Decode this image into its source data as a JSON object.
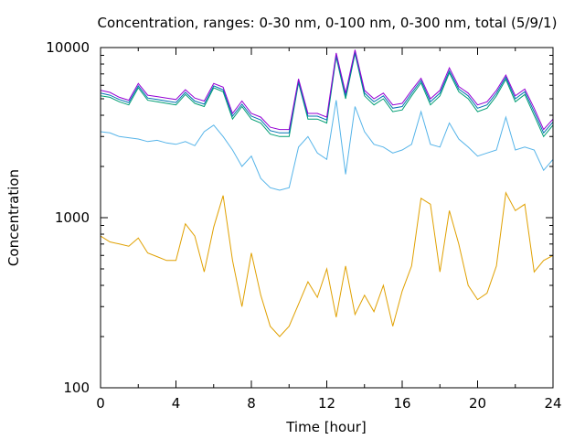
{
  "chart_data": {
    "type": "line",
    "title": "Concentration, ranges: 0-30 nm, 0-100 nm, 0-300 nm, total (5/9/1)",
    "xlabel": "Time [hour]",
    "ylabel": "Concentration",
    "xlim": [
      0,
      24
    ],
    "ylim": [
      100,
      10000
    ],
    "yscale": "log",
    "grid": false,
    "legend": "none",
    "xticks": [
      "0",
      "4",
      "8",
      "12",
      "16",
      "20",
      "24"
    ],
    "yticks": [
      "100",
      "1000",
      "10000"
    ],
    "x": [
      0,
      0.5,
      1,
      1.5,
      2,
      2.5,
      3,
      3.5,
      4,
      4.5,
      5,
      5.5,
      6,
      6.5,
      7,
      7.5,
      8,
      8.5,
      9,
      9.5,
      10,
      10.5,
      11,
      11.5,
      12,
      12.5,
      13,
      13.5,
      14,
      14.5,
      15,
      15.5,
      16,
      16.5,
      17,
      17.5,
      18,
      18.5,
      19,
      19.5,
      20,
      20.5,
      21,
      21.5,
      22,
      22.5,
      23,
      23.5,
      24
    ],
    "series": [
      {
        "color": "#e0a000",
        "values": [
          780,
          720,
          700,
          680,
          760,
          620,
          590,
          560,
          560,
          920,
          780,
          480,
          880,
          1350,
          560,
          300,
          620,
          350,
          230,
          200,
          230,
          310,
          420,
          340,
          500,
          260,
          520,
          270,
          350,
          280,
          400,
          230,
          370,
          520,
          1300,
          1200,
          480,
          1100,
          700,
          400,
          330,
          360,
          520,
          1400,
          1100,
          1200,
          480,
          560,
          600
        ]
      },
      {
        "color": "#56b4e9",
        "values": [
          3200,
          3150,
          3000,
          2950,
          2900,
          2800,
          2850,
          2750,
          2700,
          2800,
          2650,
          3200,
          3500,
          3000,
          2500,
          2000,
          2300,
          1700,
          1500,
          1450,
          1500,
          2600,
          3000,
          2400,
          2200,
          4900,
          1800,
          4500,
          3200,
          2700,
          2600,
          2400,
          2500,
          2700,
          4200,
          2700,
          2600,
          3600,
          2900,
          2600,
          2300,
          2400,
          2500,
          3900,
          2500,
          2600,
          2500,
          1900,
          2200
        ]
      },
      {
        "color": "#009e73",
        "values": [
          5200,
          5100,
          4800,
          4600,
          5800,
          4900,
          4800,
          4700,
          4600,
          5300,
          4700,
          4500,
          5800,
          5500,
          3800,
          4500,
          3800,
          3600,
          3100,
          3000,
          3000,
          6200,
          3800,
          3800,
          3600,
          8800,
          5000,
          9200,
          5200,
          4600,
          5000,
          4200,
          4300,
          5200,
          6200,
          4600,
          5200,
          7100,
          5500,
          5000,
          4200,
          4400,
          5200,
          6500,
          4800,
          5300,
          4000,
          3000,
          3500
        ]
      },
      {
        "color": "#0072b2",
        "values": [
          5400,
          5250,
          4950,
          4750,
          5950,
          5050,
          4950,
          4850,
          4750,
          5450,
          4850,
          4650,
          5950,
          5650,
          3950,
          4650,
          3950,
          3750,
          3250,
          3150,
          3150,
          6350,
          3950,
          3950,
          3750,
          9000,
          5200,
          9400,
          5400,
          4800,
          5200,
          4400,
          4500,
          5400,
          6400,
          4800,
          5400,
          7300,
          5700,
          5200,
          4400,
          4600,
          5400,
          6700,
          5000,
          5500,
          4200,
          3150,
          3650
        ]
      },
      {
        "color": "#9400d3",
        "values": [
          5600,
          5450,
          5100,
          4900,
          6150,
          5250,
          5150,
          5050,
          4950,
          5650,
          5050,
          4850,
          6150,
          5850,
          4100,
          4850,
          4100,
          3900,
          3400,
          3300,
          3300,
          6550,
          4100,
          4100,
          3900,
          9300,
          5400,
          9700,
          5600,
          5000,
          5400,
          4600,
          4700,
          5600,
          6600,
          5000,
          5600,
          7600,
          5900,
          5400,
          4600,
          4800,
          5600,
          6900,
          5200,
          5700,
          4400,
          3300,
          3800
        ]
      }
    ]
  }
}
